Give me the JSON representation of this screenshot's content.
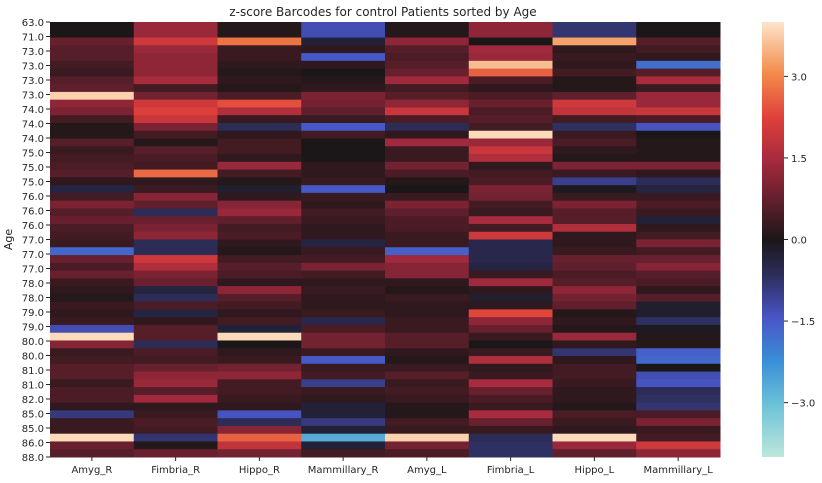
{
  "chart_data": {
    "type": "heatmap",
    "title": "z-score Barcodes for control Patients sorted by Age",
    "ylabel": "Age",
    "xlabel": "",
    "columns": [
      "Amyg_R",
      "Fimbria_R",
      "Hippo_R",
      "Mammillary_R",
      "Amyg_L",
      "Fimbria_L",
      "Hippo_L",
      "Mammillary_L"
    ],
    "ytick_labels": [
      "63.0",
      "71.0",
      "73.0",
      "73.0",
      "73.0",
      "73.0",
      "74.0",
      "74.0",
      "74.0",
      "75.0",
      "75.0",
      "75.0",
      "76.0",
      "76.0",
      "76.0",
      "77.0",
      "77.0",
      "77.0",
      "78.0",
      "78.0",
      "79.0",
      "79.0",
      "80.0",
      "80.0",
      "81.0",
      "81.0",
      "82.0",
      "85.0",
      "85.0",
      "86.0",
      "88.0"
    ],
    "rows": [
      {
        "age": 63.0,
        "values": [
          0.0,
          1.3,
          0.1,
          -1.3,
          0.1,
          1.2,
          -0.8,
          0.0
        ]
      },
      {
        "age": 63.0,
        "values": [
          0.0,
          1.3,
          0.1,
          -1.3,
          0.1,
          1.2,
          -0.8,
          0.0
        ]
      },
      {
        "age": 71.0,
        "values": [
          0.8,
          2.0,
          2.8,
          -0.3,
          1.2,
          0.0,
          3.3,
          0.6
        ]
      },
      {
        "age": 71.0,
        "values": [
          0.6,
          1.3,
          0.3,
          0.2,
          0.6,
          1.4,
          0.2,
          0.4
        ]
      },
      {
        "age": 73.0,
        "values": [
          0.6,
          1.2,
          0.3,
          -1.5,
          0.5,
          1.3,
          0.3,
          0.2
        ]
      },
      {
        "age": 73.0,
        "values": [
          0.4,
          1.2,
          0.2,
          0.2,
          0.6,
          3.6,
          0.2,
          -1.8
        ]
      },
      {
        "age": 73.0,
        "values": [
          0.3,
          1.2,
          0.1,
          0.0,
          0.8,
          2.6,
          0.4,
          0.6
        ]
      },
      {
        "age": 73.0,
        "values": [
          0.6,
          1.5,
          0.2,
          0.1,
          1.4,
          0.5,
          0.1,
          1.5
        ]
      },
      {
        "age": 73.0,
        "values": [
          0.7,
          0.4,
          0.1,
          0.2,
          0.4,
          0.2,
          0.1,
          0.3
        ]
      },
      {
        "age": 73.0,
        "values": [
          3.8,
          0.9,
          0.5,
          1.0,
          0.6,
          0.5,
          0.7,
          1.3
        ]
      },
      {
        "age": 74.0,
        "values": [
          1.2,
          2.0,
          2.4,
          0.9,
          1.2,
          0.8,
          2.0,
          1.3
        ]
      },
      {
        "age": 74.0,
        "values": [
          1.0,
          2.2,
          1.6,
          0.7,
          1.9,
          0.5,
          1.8,
          1.9
        ]
      },
      {
        "age": 74.0,
        "values": [
          0.4,
          1.9,
          0.3,
          0.3,
          0.5,
          0.6,
          0.4,
          0.5
        ]
      },
      {
        "age": 74.0,
        "values": [
          0.1,
          1.0,
          -0.6,
          -1.5,
          -0.6,
          0.4,
          -0.7,
          -1.4
        ]
      },
      {
        "age": 74.0,
        "values": [
          0.1,
          0.4,
          0.2,
          0.4,
          0.2,
          3.9,
          0.3,
          0.0
        ]
      },
      {
        "age": 74.0,
        "values": [
          0.6,
          0.1,
          0.4,
          0.0,
          1.4,
          1.3,
          0.5,
          0.1
        ]
      },
      {
        "age": 75.0,
        "values": [
          0.3,
          0.6,
          0.4,
          0.0,
          0.3,
          1.9,
          0.2,
          0.1
        ]
      },
      {
        "age": 75.0,
        "values": [
          0.4,
          0.5,
          0.2,
          0.0,
          0.3,
          1.6,
          0.1,
          0.1
        ]
      },
      {
        "age": 75.0,
        "values": [
          0.5,
          0.4,
          1.3,
          0.2,
          0.9,
          0.2,
          1.0,
          1.0
        ]
      },
      {
        "age": 75.0,
        "values": [
          0.6,
          2.7,
          0.4,
          0.2,
          0.5,
          0.4,
          0.3,
          0.2
        ]
      },
      {
        "age": 75.0,
        "values": [
          0.2,
          0.2,
          0.1,
          0.3,
          0.1,
          0.5,
          -1.0,
          -0.6
        ]
      },
      {
        "age": 76.0,
        "values": [
          -0.4,
          0.3,
          -0.2,
          -1.5,
          0.0,
          1.0,
          -0.1,
          -0.4
        ]
      },
      {
        "age": 76.0,
        "values": [
          0.4,
          1.1,
          0.2,
          0.3,
          0.3,
          0.9,
          0.3,
          0.3
        ]
      },
      {
        "age": 76.0,
        "values": [
          1.0,
          0.7,
          1.1,
          0.2,
          1.0,
          0.4,
          1.0,
          0.5
        ]
      },
      {
        "age": 76.0,
        "values": [
          0.6,
          -0.6,
          1.3,
          0.4,
          0.7,
          0.3,
          0.6,
          0.3
        ]
      },
      {
        "age": 76.0,
        "values": [
          0.8,
          0.8,
          0.7,
          0.3,
          0.5,
          1.5,
          0.6,
          -0.3
        ]
      },
      {
        "age": 76.0,
        "values": [
          0.5,
          1.0,
          0.4,
          0.2,
          0.5,
          0.4,
          1.6,
          0.2
        ]
      },
      {
        "age": 77.0,
        "values": [
          0.4,
          1.2,
          0.5,
          0.2,
          0.3,
          2.0,
          0.2,
          0.4
        ]
      },
      {
        "age": 77.0,
        "values": [
          0.3,
          -0.6,
          0.2,
          -0.4,
          0.3,
          -0.5,
          0.2,
          1.0
        ]
      },
      {
        "age": 77.0,
        "values": [
          -1.7,
          -0.6,
          0.1,
          0.3,
          -1.6,
          -0.5,
          0.3,
          0.4
        ]
      },
      {
        "age": 77.0,
        "values": [
          0.8,
          2.0,
          0.4,
          0.4,
          1.4,
          -0.5,
          0.8,
          0.8
        ]
      },
      {
        "age": 77.0,
        "values": [
          0.5,
          1.6,
          0.6,
          1.0,
          1.1,
          -0.4,
          0.7,
          1.1
        ]
      },
      {
        "age": 77.0,
        "values": [
          0.8,
          1.0,
          0.5,
          0.4,
          1.1,
          0.3,
          0.5,
          0.6
        ]
      },
      {
        "age": 78.0,
        "values": [
          0.3,
          0.8,
          0.2,
          0.2,
          0.2,
          1.4,
          0.6,
          0.5
        ]
      },
      {
        "age": 78.0,
        "values": [
          0.2,
          -0.4,
          1.2,
          0.3,
          0.1,
          0.2,
          1.2,
          0.2
        ]
      },
      {
        "age": 78.0,
        "values": [
          0.1,
          -0.6,
          0.6,
          0.2,
          0.3,
          -0.2,
          0.9,
          0.6
        ]
      },
      {
        "age": 78.0,
        "values": [
          0.3,
          0.5,
          0.4,
          0.2,
          0.2,
          0.2,
          0.7,
          -0.2
        ]
      },
      {
        "age": 79.0,
        "values": [
          0.2,
          -0.4,
          0.2,
          0.3,
          0.2,
          2.3,
          0.1,
          -0.2
        ]
      },
      {
        "age": 79.0,
        "values": [
          0.3,
          0.2,
          0.4,
          -0.5,
          0.3,
          1.2,
          0.2,
          -0.7
        ]
      },
      {
        "age": 79.0,
        "values": [
          -1.3,
          0.6,
          -0.3,
          0.5,
          0.3,
          0.8,
          0.1,
          -0.1
        ]
      },
      {
        "age": 80.0,
        "values": [
          3.9,
          0.6,
          3.9,
          0.9,
          0.6,
          0.3,
          1.3,
          0.1
        ]
      },
      {
        "age": 80.0,
        "values": [
          1.1,
          -0.6,
          0.0,
          0.9,
          0.6,
          0.0,
          0.2,
          0.1
        ]
      },
      {
        "age": 80.0,
        "values": [
          0.3,
          0.5,
          0.2,
          0.3,
          0.2,
          0.3,
          -0.8,
          -1.6
        ]
      },
      {
        "age": 80.0,
        "values": [
          0.4,
          0.4,
          0.3,
          -1.5,
          0.1,
          1.6,
          0.2,
          -1.7
        ]
      },
      {
        "age": 81.0,
        "values": [
          0.6,
          0.8,
          0.9,
          0.3,
          0.3,
          0.2,
          0.4,
          0.0
        ]
      },
      {
        "age": 81.0,
        "values": [
          0.6,
          1.2,
          1.2,
          0.4,
          0.6,
          0.3,
          0.4,
          -1.3
        ]
      },
      {
        "age": 81.0,
        "values": [
          0.3,
          1.3,
          0.4,
          -1.0,
          0.3,
          1.5,
          0.3,
          -1.4
        ]
      },
      {
        "age": 82.0,
        "values": [
          0.5,
          0.6,
          0.4,
          0.3,
          0.4,
          0.8,
          0.2,
          -0.6
        ]
      },
      {
        "age": 82.0,
        "values": [
          0.5,
          1.4,
          0.3,
          0.2,
          0.3,
          0.5,
          0.2,
          -0.7
        ]
      },
      {
        "age": 82.0,
        "values": [
          0.2,
          0.2,
          0.2,
          -0.3,
          0.1,
          0.3,
          0.1,
          -0.8
        ]
      },
      {
        "age": 85.0,
        "values": [
          -0.9,
          0.3,
          -1.4,
          -0.3,
          0.1,
          1.5,
          0.5,
          0.5
        ]
      },
      {
        "age": 85.0,
        "values": [
          0.3,
          0.5,
          -0.6,
          -0.9,
          0.4,
          0.8,
          0.3,
          1.0
        ]
      },
      {
        "age": 85.0,
        "values": [
          0.3,
          0.4,
          1.1,
          -0.3,
          0.3,
          0.3,
          0.2,
          0.3
        ]
      },
      {
        "age": 86.0,
        "values": [
          3.9,
          -0.8,
          2.6,
          -2.7,
          3.8,
          -0.6,
          3.9,
          0.4
        ]
      },
      {
        "age": 86.0,
        "values": [
          0.8,
          0.1,
          1.8,
          -0.3,
          0.9,
          -0.7,
          1.3,
          2.0
        ]
      },
      {
        "age": 88.0,
        "values": [
          0.6,
          0.8,
          0.9,
          0.4,
          0.5,
          -0.7,
          0.7,
          1.2
        ]
      }
    ],
    "colorbar": {
      "vmin": -4.0,
      "vmax": 4.0,
      "ticks": [
        {
          "value": 3.0,
          "label": "3.0"
        },
        {
          "value": 1.5,
          "label": "1.5"
        },
        {
          "value": 0.0,
          "label": "0.0"
        },
        {
          "value": -1.5,
          "label": "−1.5"
        },
        {
          "value": -3.0,
          "label": "−3.0"
        }
      ],
      "colormap": "icefire",
      "stops": [
        {
          "v": 0.0,
          "color": "#bde7db"
        },
        {
          "v": 0.12,
          "color": "#6cc2d8"
        },
        {
          "v": 0.22,
          "color": "#3a8fd6"
        },
        {
          "v": 0.32,
          "color": "#4855c6"
        },
        {
          "v": 0.42,
          "color": "#2d2d5a"
        },
        {
          "v": 0.5,
          "color": "#1b1718"
        },
        {
          "v": 0.58,
          "color": "#5a1e2a"
        },
        {
          "v": 0.68,
          "color": "#a52a3e"
        },
        {
          "v": 0.78,
          "color": "#e0403a"
        },
        {
          "v": 0.88,
          "color": "#f28a4a"
        },
        {
          "v": 1.0,
          "color": "#fde4c8"
        }
      ]
    }
  }
}
